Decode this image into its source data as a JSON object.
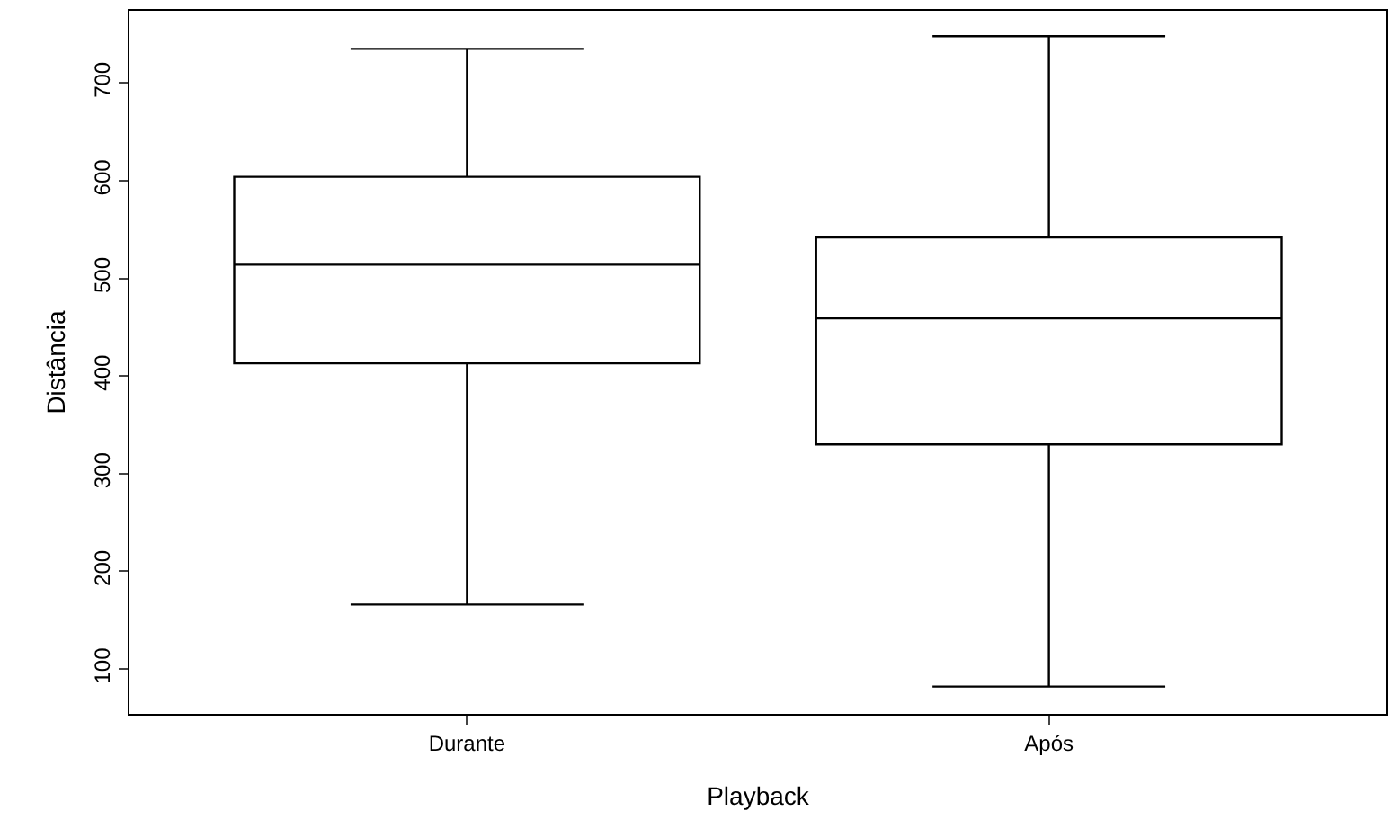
{
  "chart_data": {
    "type": "box",
    "xlabel": "Playback",
    "ylabel": "Distância",
    "categories": [
      "Durante",
      "Após"
    ],
    "boxes": [
      {
        "low": 166,
        "q1": 413,
        "median": 514,
        "q3": 604,
        "high": 735
      },
      {
        "low": 82,
        "q1": 330,
        "median": 459,
        "q3": 542,
        "high": 748
      }
    ],
    "color": "#000000",
    "ylim": [
      54,
      774
    ],
    "yticks": [
      100,
      200,
      300,
      400,
      500,
      600,
      700
    ]
  }
}
